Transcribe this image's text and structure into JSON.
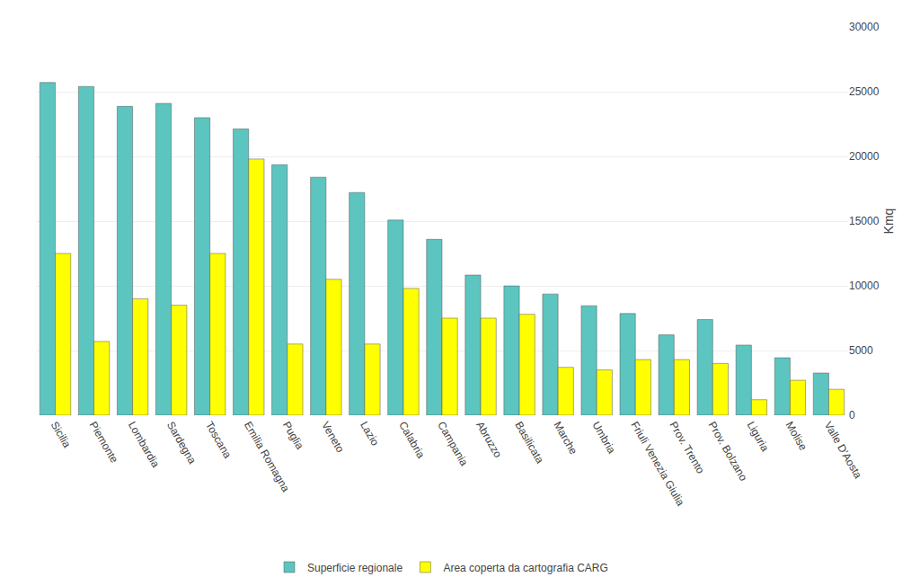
{
  "chart_data": {
    "type": "bar",
    "categories": [
      "Sicilia",
      "Piemonte",
      "Lombardia",
      "Sardegna",
      "Toscana",
      "Emilia Romagna",
      "Puglia",
      "Veneto",
      "Lazio",
      "Calabria",
      "Campania",
      "Abruzzo",
      "Basilicata",
      "Marche",
      "Umbria",
      "Friuli Venezia Giulia",
      "Prov. Trento",
      "Prov. Bolzano",
      "Liguria",
      "Molise",
      "Valle D'Aosta"
    ],
    "series": [
      {
        "name": "Superficie regionale",
        "color": "#5CC5C0",
        "values": [
          25707,
          25399,
          23863,
          24090,
          22993,
          22117,
          19358,
          18391,
          17207,
          15080,
          13590,
          10831,
          9992,
          9366,
          8456,
          7858,
          6207,
          7400,
          5421,
          4438,
          3263
        ]
      },
      {
        "name": "Area coperta da cartografia CARG",
        "color": "#FFFF00",
        "values": [
          12500,
          5700,
          9000,
          8500,
          12500,
          19800,
          5500,
          10500,
          5500,
          9800,
          7500,
          7500,
          7800,
          3700,
          3500,
          4300,
          4300,
          4000,
          1200,
          2700,
          2000
        ]
      }
    ],
    "ylabel": "Kmq",
    "ylim": [
      0,
      30000
    ],
    "yticks": [
      0,
      5000,
      10000,
      15000,
      20000,
      25000,
      30000
    ],
    "grid": true,
    "legend": "bottom"
  }
}
